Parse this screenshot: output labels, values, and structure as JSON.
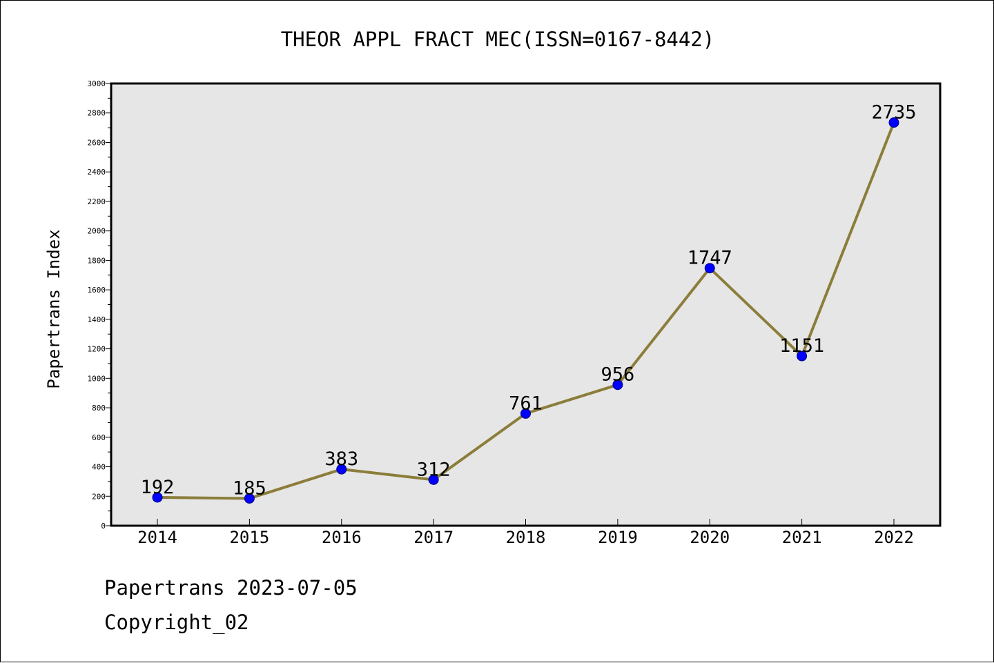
{
  "chart_data": {
    "type": "line",
    "title": "THEOR APPL FRACT MEC(ISSN=0167-8442)",
    "xlabel": "",
    "ylabel": "Papertrans Index",
    "categories": [
      "2014",
      "2015",
      "2016",
      "2017",
      "2018",
      "2019",
      "2020",
      "2021",
      "2022"
    ],
    "values": [
      192,
      185,
      383,
      312,
      761,
      956,
      1747,
      1151,
      2735
    ],
    "data_labels": [
      "192",
      "185",
      "383",
      "312",
      "761",
      "956",
      "1747",
      "1151",
      "2735"
    ],
    "ylim": [
      0,
      3000
    ],
    "yticks": [
      0,
      200,
      400,
      600,
      800,
      1000,
      1200,
      1400,
      1600,
      1800,
      2000,
      2200,
      2400,
      2600,
      2800,
      3000
    ],
    "grid": false,
    "legend": "none",
    "colors": {
      "line": "#8B7D3A",
      "marker_fill": "#0000FF",
      "marker_stroke": "#000080",
      "plot_background": "#E6E6E6"
    }
  },
  "footer": {
    "date_text": "Papertrans 2023-07-05",
    "copyright_text": "Copyright_02"
  }
}
